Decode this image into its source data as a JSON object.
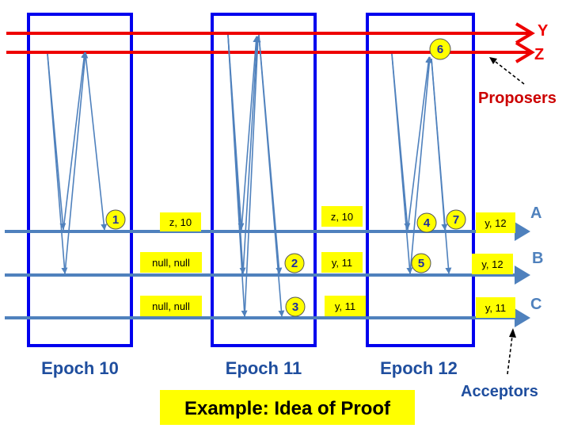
{
  "proposers": {
    "label": "Proposers",
    "lines": [
      {
        "id": "Y",
        "label": "Y",
        "color": "#ee0000"
      },
      {
        "id": "Z",
        "label": "Z",
        "color": "#ee0000"
      }
    ]
  },
  "acceptors": {
    "label": "Acceptors",
    "lines": [
      {
        "id": "A",
        "label": "A",
        "color": "#4f81bd"
      },
      {
        "id": "B",
        "label": "B",
        "color": "#4f81bd"
      },
      {
        "id": "C",
        "label": "C",
        "color": "#4f81bd"
      }
    ]
  },
  "epochs": [
    {
      "label": "Epoch 10",
      "border_color": "#0000ee"
    },
    {
      "label": "Epoch 11",
      "border_color": "#0000ee"
    },
    {
      "label": "Epoch 12",
      "border_color": "#0000ee"
    }
  ],
  "state_boxes": [
    {
      "text": "z, 10",
      "acceptor": "A",
      "after_epoch": "Epoch 10"
    },
    {
      "text": "null, null",
      "acceptor": "B",
      "after_epoch": "Epoch 10"
    },
    {
      "text": "null, null",
      "acceptor": "C",
      "after_epoch": "Epoch 10"
    },
    {
      "text": "z, 10",
      "acceptor": "A",
      "after_epoch": "Epoch 11"
    },
    {
      "text": "y, 11",
      "acceptor": "B",
      "after_epoch": "Epoch 11"
    },
    {
      "text": "y, 11",
      "acceptor": "C",
      "after_epoch": "Epoch 11"
    },
    {
      "text": "y, 12",
      "acceptor": "A",
      "after_epoch": "Epoch 12"
    },
    {
      "text": "y, 12",
      "acceptor": "B",
      "after_epoch": "Epoch 12"
    },
    {
      "text": "y, 11",
      "acceptor": "C",
      "after_epoch": "Epoch 12"
    }
  ],
  "steps": [
    "1",
    "2",
    "3",
    "4",
    "5",
    "6",
    "7"
  ],
  "caption": "Example: Idea of Proof",
  "colors": {
    "proposer_line": "#ee0000",
    "acceptor_line": "#4f81bd",
    "epoch_box": "#0000ee",
    "state_box_fill": "#ffff00",
    "step_fill": "#ffff00",
    "label_blue": "#1f4e9e",
    "proposers_label": "#cc0000"
  }
}
